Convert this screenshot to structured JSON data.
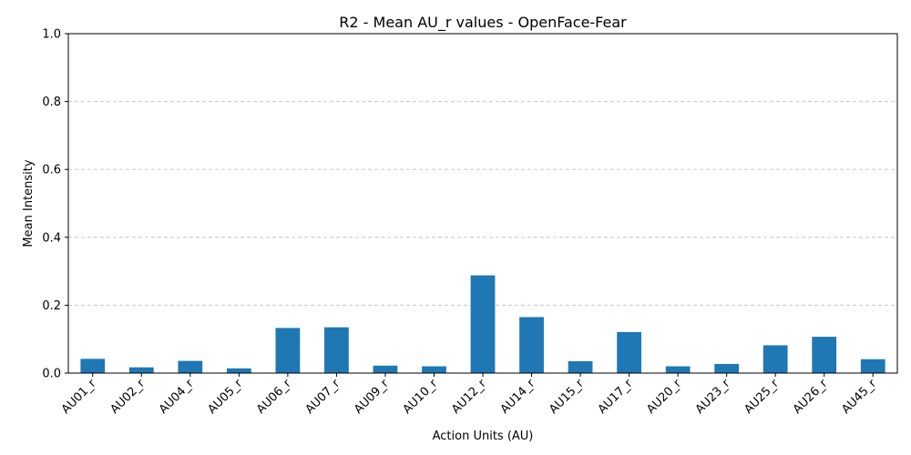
{
  "chart_data": {
    "type": "bar",
    "title": "R2 - Mean AU_r values - OpenFace-Fear",
    "xlabel": "Action Units (AU)",
    "ylabel": "Mean Intensity",
    "ylim": [
      0,
      1.0
    ],
    "yticks": [
      "0.0",
      "0.2",
      "0.4",
      "0.6",
      "0.8",
      "1.0"
    ],
    "ytick_values": [
      0,
      0.2,
      0.4,
      0.6,
      0.8,
      1.0
    ],
    "grid": "y-dashed",
    "color": "#1f77b4",
    "categories": [
      "AU01_r",
      "AU02_r",
      "AU04_r",
      "AU05_r",
      "AU06_r",
      "AU07_r",
      "AU09_r",
      "AU10_r",
      "AU12_r",
      "AU14_r",
      "AU15_r",
      "AU17_r",
      "AU20_r",
      "AU23_r",
      "AU25_r",
      "AU26_r",
      "AU45_r"
    ],
    "values": [
      0.042,
      0.017,
      0.036,
      0.014,
      0.133,
      0.135,
      0.022,
      0.02,
      0.288,
      0.165,
      0.035,
      0.121,
      0.02,
      0.027,
      0.082,
      0.107,
      0.041
    ]
  }
}
